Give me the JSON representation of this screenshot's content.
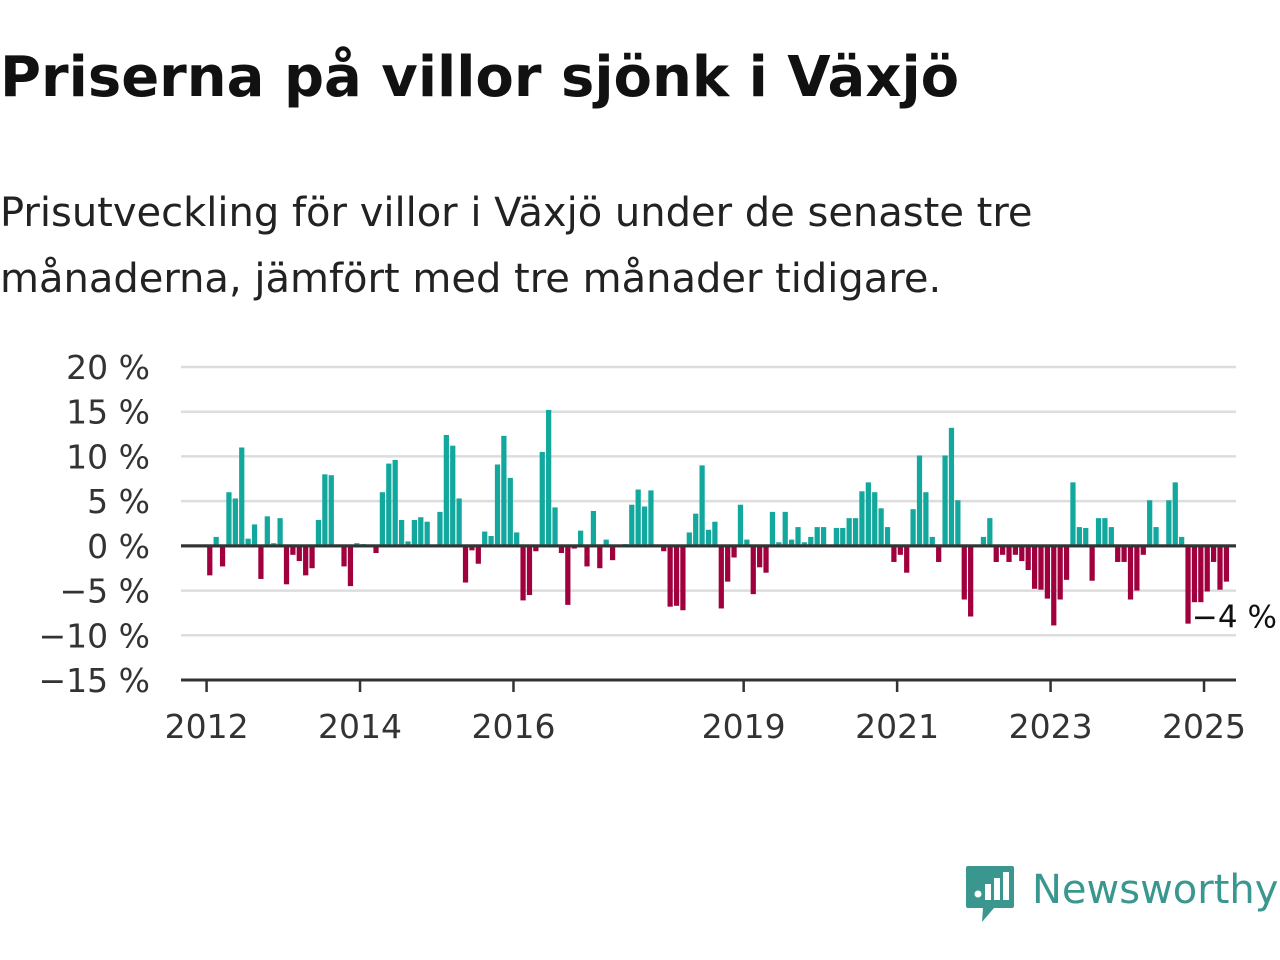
{
  "header": {
    "title": "Priserna på villor sjönk i Växjö",
    "subtitle": "Prisutveckling för villor i Växjö under de senaste tre månaderna, jämfört med tre månader tidigare."
  },
  "brand": {
    "name": "Newsworthy",
    "icon": "bar-chart-speech-bubble-icon",
    "color": "#3a978f"
  },
  "colors": {
    "positive": "#13a89e",
    "negative": "#a1003e",
    "gridline": "#dddddd",
    "axis": "#333333"
  },
  "chart_data": {
    "type": "bar",
    "title": "Priserna på villor sjönk i Växjö",
    "xlabel": "",
    "ylabel": "",
    "ylim": [
      -15,
      20
    ],
    "y_ticks": [
      20,
      15,
      10,
      5,
      0,
      -5,
      -10,
      -15
    ],
    "y_tick_labels": [
      "20 %",
      "15 %",
      "10 %",
      "5 %",
      "0 %",
      "−5 %",
      "−10 %",
      "−15 %"
    ],
    "x_range": [
      "2011-09",
      "2025-06"
    ],
    "x_ticks": [
      "2012-01",
      "2014-01",
      "2016-01",
      "2019-01",
      "2021-01",
      "2023-01",
      "2025-01"
    ],
    "x_tick_labels": [
      "2012",
      "2014",
      "2016",
      "2019",
      "2021",
      "2023",
      "2025"
    ],
    "grid": true,
    "legend": "none",
    "annotation": {
      "text": "−4 %",
      "x": "2025-04",
      "y": -4
    },
    "x": [
      "2012-01",
      "2012-02",
      "2012-03",
      "2012-04",
      "2012-05",
      "2012-06",
      "2012-07",
      "2012-08",
      "2012-09",
      "2012-10",
      "2012-11",
      "2012-12",
      "2013-01",
      "2013-02",
      "2013-03",
      "2013-04",
      "2013-05",
      "2013-06",
      "2013-07",
      "2013-08",
      "2013-09",
      "2013-10",
      "2013-11",
      "2013-12",
      "2014-01",
      "2014-02",
      "2014-03",
      "2014-04",
      "2014-05",
      "2014-06",
      "2014-07",
      "2014-08",
      "2014-09",
      "2014-10",
      "2014-11",
      "2014-12",
      "2015-01",
      "2015-02",
      "2015-03",
      "2015-04",
      "2015-05",
      "2015-06",
      "2015-07",
      "2015-08",
      "2015-09",
      "2015-10",
      "2015-11",
      "2015-12",
      "2016-01",
      "2016-02",
      "2016-03",
      "2016-04",
      "2016-05",
      "2016-06",
      "2016-07",
      "2016-08",
      "2016-09",
      "2016-10",
      "2016-11",
      "2016-12",
      "2017-01",
      "2017-02",
      "2017-03",
      "2017-04",
      "2017-05",
      "2017-06",
      "2017-07",
      "2017-08",
      "2017-09",
      "2017-10",
      "2017-11",
      "2017-12",
      "2018-01",
      "2018-02",
      "2018-03",
      "2018-04",
      "2018-05",
      "2018-06",
      "2018-07",
      "2018-08",
      "2018-09",
      "2018-10",
      "2018-11",
      "2018-12",
      "2019-01",
      "2019-02",
      "2019-03",
      "2019-04",
      "2019-05",
      "2019-06",
      "2019-07",
      "2019-08",
      "2019-09",
      "2019-10",
      "2019-11",
      "2019-12",
      "2020-01",
      "2020-02",
      "2020-03",
      "2020-04",
      "2020-05",
      "2020-06",
      "2020-07",
      "2020-08",
      "2020-09",
      "2020-10",
      "2020-11",
      "2020-12",
      "2021-01",
      "2021-02",
      "2021-03",
      "2021-04",
      "2021-05",
      "2021-06",
      "2021-07",
      "2021-08",
      "2021-09",
      "2021-10",
      "2021-11",
      "2021-12",
      "2022-01",
      "2022-02",
      "2022-03",
      "2022-04",
      "2022-05",
      "2022-06",
      "2022-07",
      "2022-08",
      "2022-09",
      "2022-10",
      "2022-11",
      "2022-12",
      "2023-01",
      "2023-02",
      "2023-03",
      "2023-04",
      "2023-05",
      "2023-06",
      "2023-07",
      "2023-08",
      "2023-09",
      "2023-10",
      "2023-11",
      "2023-12",
      "2024-01",
      "2024-02",
      "2024-03",
      "2024-04",
      "2024-05",
      "2024-06",
      "2024-07",
      "2024-08",
      "2024-09",
      "2024-10",
      "2024-11",
      "2024-12",
      "2025-01",
      "2025-02",
      "2025-03",
      "2025-04"
    ],
    "values": [
      -3.3,
      1.0,
      -2.3,
      6.0,
      5.3,
      11.0,
      0.8,
      2.4,
      -3.7,
      3.3,
      0.3,
      3.1,
      -4.3,
      -1.0,
      -1.7,
      -3.3,
      -2.5,
      2.9,
      8.0,
      7.9,
      0.0,
      -2.3,
      -4.5,
      0.3,
      0.2,
      0.0,
      -0.8,
      6.0,
      9.2,
      9.6,
      2.9,
      0.5,
      2.9,
      3.2,
      2.7,
      0.0,
      3.8,
      12.4,
      11.2,
      5.3,
      -4.1,
      -0.5,
      -2.0,
      1.6,
      1.1,
      9.1,
      12.3,
      7.6,
      1.5,
      -6.1,
      -5.5,
      -0.6,
      10.5,
      15.2,
      4.3,
      -0.8,
      -6.6,
      -0.3,
      1.7,
      -2.3,
      3.9,
      -2.5,
      0.7,
      -1.6,
      0.0,
      0.2,
      4.6,
      6.3,
      4.4,
      6.2,
      0.0,
      -0.6,
      -6.8,
      -6.7,
      -7.2,
      1.5,
      3.6,
      9.0,
      1.8,
      2.7,
      -7.0,
      -4.0,
      -1.3,
      4.6,
      0.7,
      -5.4,
      -2.4,
      -3.0,
      3.8,
      0.4,
      3.8,
      0.7,
      2.1,
      0.4,
      1.0,
      2.1,
      2.1,
      0.0,
      2.0,
      2.0,
      3.1,
      3.1,
      6.1,
      7.1,
      6.0,
      4.2,
      2.1,
      -1.8,
      -1.0,
      -3.0,
      4.1,
      10.1,
      6.0,
      1.0,
      -1.8,
      10.1,
      13.2,
      5.1,
      -6.0,
      -7.9,
      0.0,
      1.0,
      3.1,
      -1.8,
      -1.0,
      -1.8,
      -1.0,
      -1.7,
      -2.7,
      -4.8,
      -4.9,
      -5.9,
      -8.9,
      -6.0,
      -3.8,
      7.1,
      2.1,
      2.0,
      -3.9,
      3.1,
      3.1,
      2.1,
      -1.8,
      -1.8,
      -6.0,
      -5.0,
      -1.0,
      5.1,
      2.1,
      0.0,
      5.1,
      7.1,
      1.0,
      -8.7,
      -6.3,
      -6.3,
      -5.1,
      -1.8,
      -4.9,
      -4.0
    ]
  }
}
